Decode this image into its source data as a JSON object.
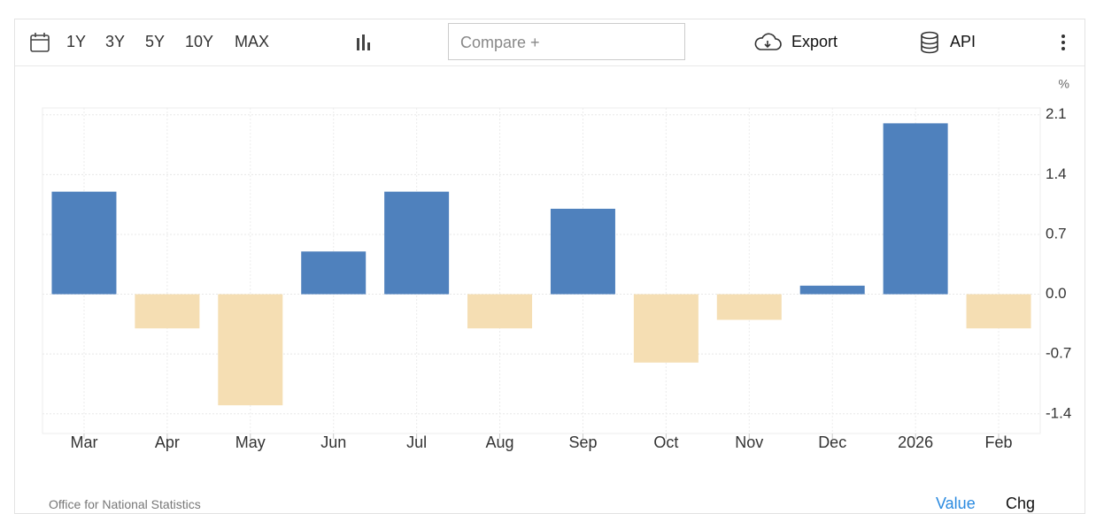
{
  "toolbar": {
    "ranges": [
      "1Y",
      "3Y",
      "5Y",
      "10Y",
      "MAX"
    ],
    "compare": "Compare +",
    "export": "Export",
    "api": "API"
  },
  "chart_data": {
    "type": "bar",
    "unit": "%",
    "categories": [
      "Mar",
      "Apr",
      "May",
      "Jun",
      "Jul",
      "Aug",
      "Sep",
      "Oct",
      "Nov",
      "Dec",
      "2026",
      "Feb"
    ],
    "values": [
      1.2,
      -0.4,
      -1.3,
      0.5,
      1.2,
      -0.4,
      1.0,
      -0.8,
      -0.3,
      0.1,
      2.0,
      -0.4
    ],
    "positive_color": "#4f81bd",
    "negative_color": "#f5deb3",
    "ylim": [
      -1.63,
      2.18
    ],
    "yticks": [
      2.1,
      1.4,
      0.7,
      {
        "value": 0,
        "label": "0.0"
      },
      -0.7,
      -1.4
    ],
    "grid": true,
    "source": "Office for National Statistics"
  },
  "footer": {
    "value": "Value",
    "chg": "Chg"
  }
}
